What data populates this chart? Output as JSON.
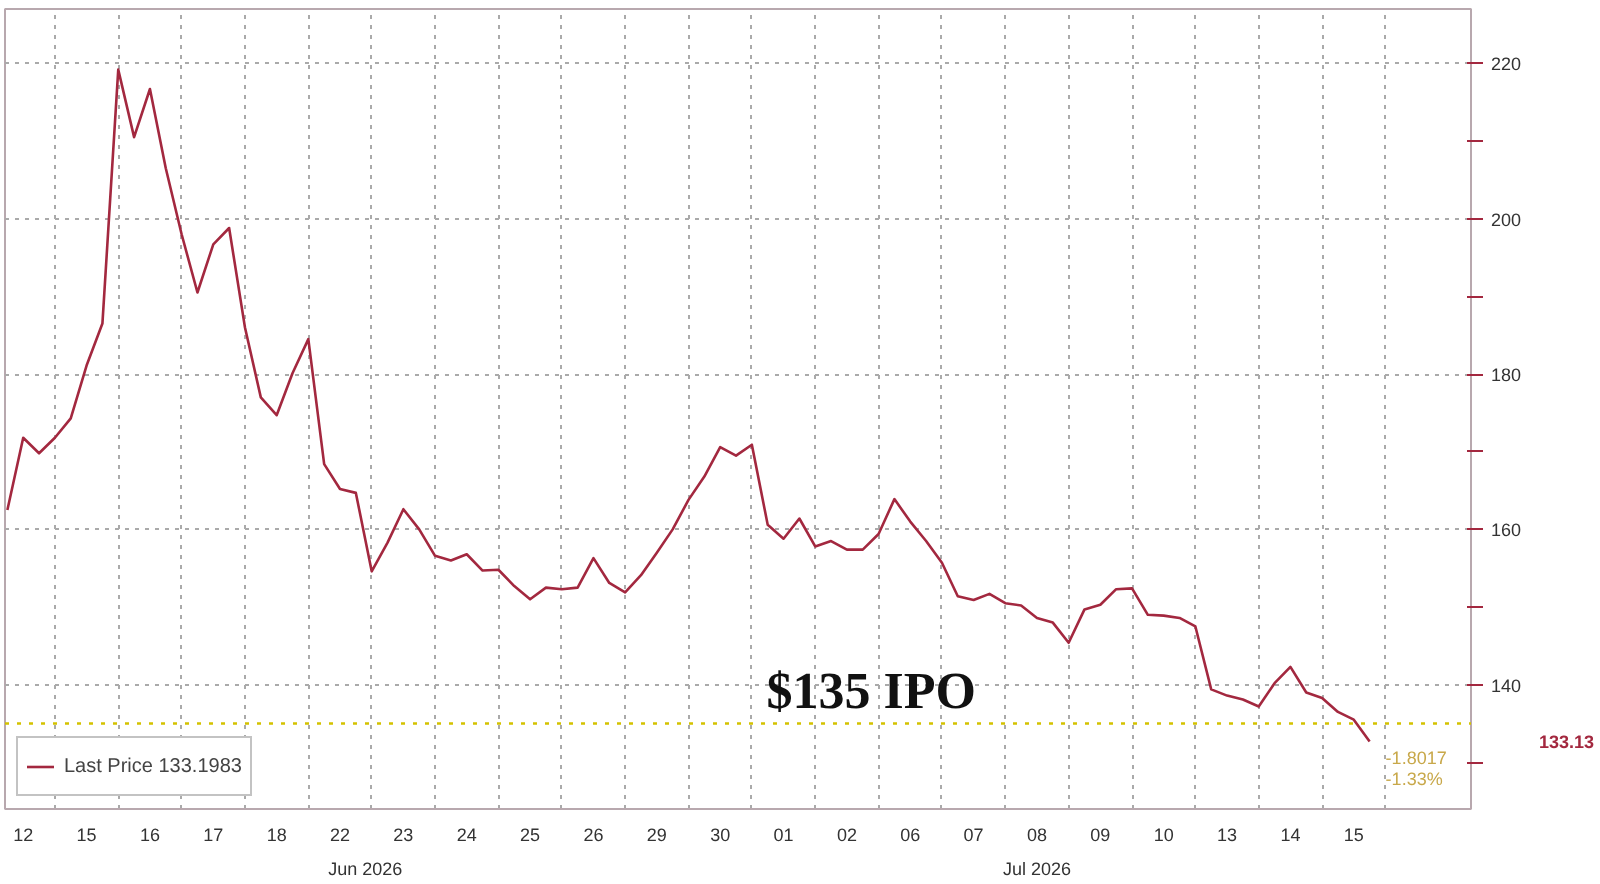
{
  "chart_data": {
    "type": "line",
    "categories": [
      null,
      "12",
      null,
      null,
      null,
      "15",
      null,
      null,
      null,
      "16",
      null,
      null,
      null,
      "17",
      null,
      null,
      null,
      "18",
      null,
      null,
      null,
      "22",
      null,
      null,
      null,
      "23",
      null,
      null,
      null,
      "24",
      null,
      null,
      null,
      "25",
      null,
      null,
      null,
      "26",
      null,
      null,
      null,
      "29",
      null,
      null,
      null,
      "30",
      null,
      null,
      null,
      "01",
      null,
      null,
      null,
      "02",
      null,
      null,
      null,
      "06",
      null,
      null,
      null,
      "07",
      null,
      null,
      null,
      "08",
      null,
      null,
      null,
      "09",
      null,
      null,
      null,
      "10",
      null,
      null,
      null,
      "13",
      null,
      null,
      null,
      "14",
      null,
      null,
      null,
      "15",
      null,
      null,
      null,
      null,
      null,
      null,
      null
    ],
    "series": [
      {
        "name": "Last Price 133.1983",
        "color": "#a3283f",
        "values": [
          162.5,
          171.8,
          169.8,
          171.8,
          174.3,
          181.1,
          186.5,
          219.2,
          210.5,
          216.7,
          206.5,
          198.0,
          190.5,
          196.7,
          198.8,
          186.0,
          177.0,
          174.7,
          180.1,
          184.5,
          168.4,
          165.2,
          164.7,
          154.6,
          158.3,
          162.6,
          160.0,
          156.6,
          156.0,
          156.8,
          154.7,
          154.8,
          152.7,
          151.0,
          152.5,
          152.3,
          152.5,
          156.3,
          153.1,
          151.9,
          154.1,
          157.0,
          160.0,
          163.8,
          166.8,
          170.6,
          169.5,
          170.9,
          160.6,
          158.8,
          161.4,
          157.8,
          158.5,
          157.4,
          157.4,
          159.4,
          163.9,
          161.0,
          158.5,
          155.7,
          151.4,
          150.9,
          151.7,
          150.5,
          150.2,
          148.6,
          148.0,
          145.4,
          149.7,
          150.3,
          152.3,
          152.4,
          149.0,
          148.9,
          148.6,
          147.5,
          139.4,
          138.6,
          138.1,
          137.2,
          140.2,
          142.3,
          139.0,
          138.3,
          136.5,
          135.5,
          132.7,
          null,
          null,
          null,
          null,
          null,
          null
        ]
      }
    ],
    "ylim": [
      124,
      227
    ],
    "yticks": [
      140,
      160,
      180,
      200,
      220,
      {
        "value": 130,
        "label": null
      },
      {
        "value": 150,
        "label": null
      },
      {
        "value": 170,
        "label": null
      },
      {
        "value": 190,
        "label": null
      },
      {
        "value": 210,
        "label": null
      }
    ],
    "grid": true,
    "legend": "bottom left",
    "ref_lines": [
      {
        "axis": "y",
        "value": 135,
        "label": "$135 IPO",
        "color": "#d4c200",
        "line_style": "dotted"
      }
    ],
    "annotations": [
      "Jun 2026",
      "Jul 2026",
      "133.13",
      "-1.8017",
      "-1.33%"
    ]
  }
}
